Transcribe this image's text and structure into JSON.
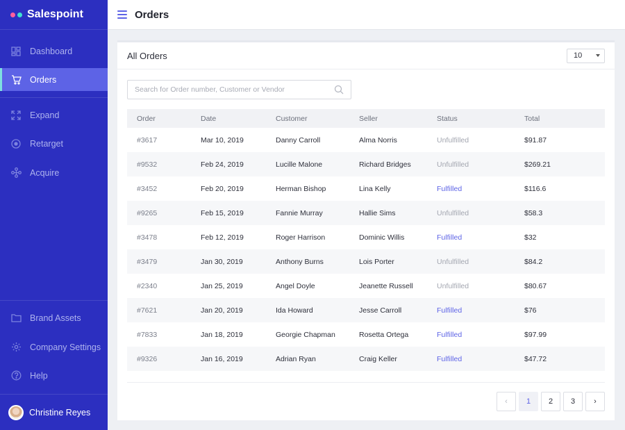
{
  "brand": {
    "name": "Salespoint",
    "dot_colors": [
      "#ff5f9e",
      "#3ee0d0"
    ]
  },
  "colors": {
    "sidebar_bg": "#2c2fc0",
    "active_bg": "#5d63e6",
    "accent": "#5d63e6",
    "active_border": "#7ee0e0"
  },
  "sidebar": {
    "top_items": [
      {
        "label": "Dashboard",
        "icon": "dashboard-icon",
        "active": false
      },
      {
        "label": "Orders",
        "icon": "cart-icon",
        "active": true
      }
    ],
    "middle_items": [
      {
        "label": "Expand",
        "icon": "expand-icon"
      },
      {
        "label": "Retarget",
        "icon": "target-icon"
      },
      {
        "label": "Acquire",
        "icon": "network-icon"
      }
    ],
    "bottom_items": [
      {
        "label": "Brand Assets",
        "icon": "folder-icon"
      },
      {
        "label": "Company Settings",
        "icon": "gear-icon"
      },
      {
        "label": "Help",
        "icon": "help-icon"
      }
    ],
    "user": {
      "name": "Christine Reyes"
    }
  },
  "header": {
    "title": "Orders",
    "menu_icon": "hamburger-icon"
  },
  "card": {
    "title": "All Orders",
    "page_size": "10",
    "search_placeholder": "Search for Order number, Customer or Vendor"
  },
  "table": {
    "columns": [
      "Order",
      "Date",
      "Customer",
      "Seller",
      "Status",
      "Total"
    ],
    "rows": [
      [
        "#3617",
        "Mar 10, 2019",
        "Danny Carroll",
        "Alma Norris",
        "Unfulfilled",
        "$91.87"
      ],
      [
        "#9532",
        "Feb 24, 2019",
        "Lucille Malone",
        "Richard Bridges",
        "Unfulfilled",
        "$269.21"
      ],
      [
        "#3452",
        "Feb 20, 2019",
        "Herman Bishop",
        "Lina Kelly",
        "Fulfilled",
        "$116.6"
      ],
      [
        "#9265",
        "Feb 15, 2019",
        "Fannie Murray",
        "Hallie Sims",
        "Unfulfilled",
        "$58.3"
      ],
      [
        "#3478",
        "Feb 12, 2019",
        "Roger Harrison",
        "Dominic Willis",
        "Fulfilled",
        "$32"
      ],
      [
        "#3479",
        "Jan 30, 2019",
        "Anthony Burns",
        "Lois Porter",
        "Unfulfilled",
        "$84.2"
      ],
      [
        "#2340",
        "Jan 25, 2019",
        "Angel Doyle",
        "Jeanette Russell",
        "Unfulfilled",
        "$80.67"
      ],
      [
        "#7621",
        "Jan 20, 2019",
        "Ida Howard",
        "Jesse Carroll",
        "Fulfilled",
        "$76"
      ],
      [
        "#7833",
        "Jan 18, 2019",
        "Georgie Chapman",
        "Rosetta Ortega",
        "Fulfilled",
        "$97.99"
      ],
      [
        "#9326",
        "Jan 16, 2019",
        "Adrian Ryan",
        "Craig Keller",
        "Fulfilled",
        "$47.72"
      ]
    ]
  },
  "pagination": {
    "prev": "‹",
    "pages": [
      "1",
      "2",
      "3"
    ],
    "current": "1",
    "next": "›"
  }
}
